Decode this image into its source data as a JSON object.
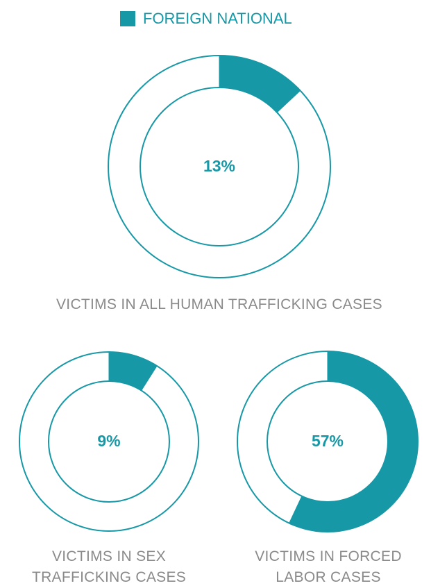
{
  "legend": {
    "name": "FOREIGN NATIONAL",
    "color": "#1798a6"
  },
  "chart_data": [
    {
      "type": "donut",
      "title": "VICTIMS IN ALL HUMAN TRAFFICKING CASES",
      "values": [
        13
      ],
      "value_labels": [
        "13%"
      ],
      "color": "#1798a6"
    },
    {
      "type": "donut",
      "title": "VICTIMS IN SEX TRAFFICKING CASES",
      "values": [
        9
      ],
      "value_labels": [
        "9%"
      ],
      "color": "#1798a6"
    },
    {
      "type": "donut",
      "title": "VICTIMS IN FORCED LABOR CASES",
      "values": [
        57
      ],
      "value_labels": [
        "57%"
      ],
      "color": "#1798a6"
    }
  ]
}
